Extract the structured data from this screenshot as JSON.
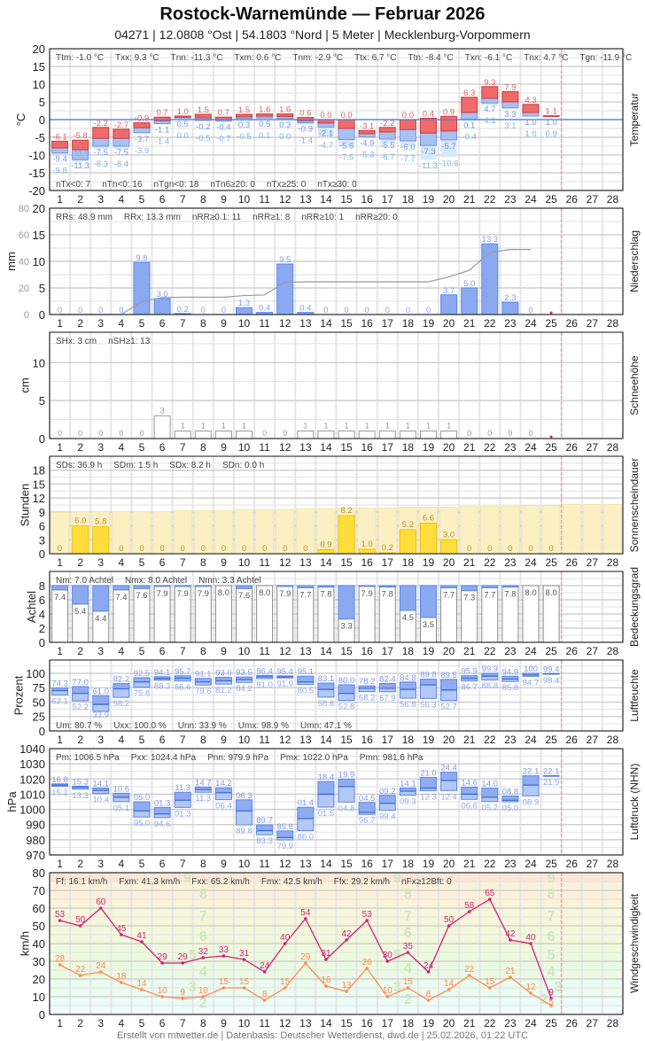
{
  "header": {
    "title": "Rostock-Warnemünde  —  Februar 2026",
    "subtitle": "04271  |  12.0808 °Ost  |  54.1803 °Nord  |  5 Meter  |  Mecklenburg-Vorpommern"
  },
  "footer": "Erstellt von mtwetter.de | Datenbasis: Deutscher Wetterdienst, dwd.de | 25.02.2026, 01:22 UTC",
  "days": [
    "1",
    "2",
    "3",
    "4",
    "5",
    "6",
    "7",
    "8",
    "9",
    "10",
    "11",
    "12",
    "13",
    "14",
    "15",
    "16",
    "17",
    "18",
    "19",
    "20",
    "21",
    "22",
    "23",
    "24",
    "25",
    "26",
    "27",
    "28"
  ],
  "today_marker_day": 25,
  "colors": {
    "tmax": "#f06a6a",
    "tmin": "#a9c0f2",
    "tground": "#d6e9f6",
    "precip": "#8aa9f0",
    "sun": "#ffdd3c",
    "sun_possible": "#fbf0c3",
    "cloud": "#8aa9f0",
    "gust": "#d0207a",
    "wind_mean": "#ff8a50",
    "today_line": "#f2a6a6"
  },
  "chart_data": [
    {
      "id": "temperature",
      "type": "bar",
      "panel_label": "Temperatur",
      "ylabel": "°C",
      "ylim": [
        -20,
        20
      ],
      "y_ticks": [
        20,
        15,
        10,
        5,
        0,
        -5,
        -10,
        -15,
        -20
      ],
      "stats_top": [
        "Ttm: -1.0 °C",
        "Txx: 9.3 °C",
        "Tnn: -11.3 °C",
        "Txm: 0.6 °C",
        "Tnm: -2.9 °C",
        "Ttx: 6.7 °C",
        "Ttn: -8.4 °C",
        "Txn: -6.1 °C",
        "Tnx: 4.7 °C",
        "Tgn: -11.9 °C"
      ],
      "stats_bottom": [
        "nTx<0: 7",
        "nTn<0: 16",
        "nTgn<0: 18",
        "nTn6≥20: 0",
        "nTx≥25: 0",
        "nTx≥30: 0"
      ],
      "tmax": [
        -6.1,
        -5.8,
        -2.2,
        -2.7,
        -0.9,
        0.7,
        1.0,
        1.5,
        0.7,
        1.5,
        1.6,
        1.6,
        0.6,
        0.0,
        0.0,
        -3.1,
        -2.2,
        0.0,
        0.4,
        0.9,
        6.3,
        9.3,
        7.9,
        4.3,
        1.1
      ],
      "tmean": [
        -8.0,
        -8.5,
        -5.3,
        -5.3,
        -2.3,
        -0.3,
        0.7,
        0.5,
        0.1,
        0.8,
        1.0,
        0.9,
        -0.3,
        -1.0,
        -2.5,
        -4.0,
        -3.5,
        -2.8,
        -3.8,
        -3.2,
        2.0,
        6.0,
        5.0,
        2.0,
        1.0
      ],
      "tmin": [
        -9.4,
        -11.3,
        -7.5,
        -7.5,
        -3.7,
        -1.1,
        0.5,
        -0.2,
        -0.4,
        0.3,
        0.5,
        0.3,
        -0.9,
        -2.1,
        -5.6,
        -4.9,
        -5.5,
        -6.0,
        -7.3,
        -5.7,
        0.1,
        4.7,
        3.3,
        1.0,
        1.0
      ],
      "tground_min": [
        -9.8,
        -11.9,
        -8.3,
        -8.4,
        -3.9,
        -1.4,
        0.0,
        -0.5,
        -0.7,
        -0.5,
        0.1,
        0.0,
        -1.4,
        -4.7,
        -7.5,
        -5.3,
        -6.7,
        -7.7,
        -11.3,
        -10.6,
        -0.4,
        4.1,
        3.1,
        1.0,
        0.9
      ]
    },
    {
      "id": "precipitation",
      "type": "bar",
      "panel_label": "Niederschlag",
      "ylabel": "mm",
      "ylim": [
        0,
        20
      ],
      "y_ticks": [
        0,
        5,
        10,
        15,
        20
      ],
      "y2lim": [
        0,
        80
      ],
      "y2_ticks": [
        0,
        20,
        40,
        60,
        80
      ],
      "stats_top": [
        "RRs: 48.9 mm",
        "RRx: 13.3 mm",
        "nRR≥0.1: 11",
        "nRR≥1: 8",
        "nRR≥10: 1",
        "nRR≥20: 0"
      ],
      "values": [
        0,
        0,
        0,
        0,
        9.8,
        3.0,
        0.2,
        0,
        0,
        1.3,
        0.4,
        9.5,
        0.4,
        0,
        0,
        0,
        0,
        0,
        0,
        3.7,
        5.0,
        13.3,
        2.3,
        0
      ],
      "cumulative_line": true
    },
    {
      "id": "snow",
      "type": "bar",
      "panel_label": "Schneehöhe",
      "ylabel": "cm",
      "ylim": [
        0,
        14
      ],
      "y_ticks": [
        0,
        5,
        10
      ],
      "stats_top": [
        "SHx: 3 cm",
        "nSH≥1: 13"
      ],
      "values": [
        0,
        0,
        0,
        0,
        0,
        3,
        1,
        1,
        1,
        1,
        0,
        0,
        1,
        1,
        1,
        1,
        1,
        1,
        1,
        1,
        0,
        0,
        0,
        0
      ]
    },
    {
      "id": "sunshine",
      "type": "bar",
      "panel_label": "Sonnenscheindauer",
      "ylabel": "Stunden",
      "ylim": [
        0,
        21
      ],
      "y_ticks": [
        0,
        3,
        6,
        9,
        12,
        15,
        18
      ],
      "stats_top": [
        "SDs: 36.9 h",
        "SDm: 1.5 h",
        "SDx: 8.2 h",
        "SDn: 0.0 h"
      ],
      "values": [
        0,
        6.0,
        5.8,
        0,
        0,
        0,
        0,
        0,
        0,
        0,
        0,
        0,
        0,
        0.9,
        8.2,
        1.0,
        0.2,
        5.2,
        6.6,
        3.0,
        0,
        0,
        0,
        0,
        0
      ],
      "possible": [
        8.9,
        9.0,
        9.0,
        9.1,
        9.1,
        9.1,
        9.3,
        9.3,
        9.3,
        9.5,
        9.5,
        9.5,
        9.7,
        9.7,
        9.8,
        9.8,
        9.8,
        10.0,
        10.0,
        10.0,
        10.2,
        10.2,
        10.2,
        10.4,
        10.4,
        10.6,
        10.6,
        10.6
      ]
    },
    {
      "id": "cloud",
      "type": "bar",
      "panel_label": "Bedeckungsgrad",
      "ylabel": "Achtel",
      "ylim": [
        0,
        10
      ],
      "y_ticks": [
        0,
        2,
        4,
        6,
        8
      ],
      "full": 8,
      "stats_top": [
        "Nm: 7.0 Achtel",
        "Nmx: 8.0 Achtel",
        "Nmn: 3.3 Achtel"
      ],
      "values": [
        7.4,
        5.4,
        4.4,
        7.4,
        7.6,
        7.9,
        7.9,
        7.9,
        8.0,
        7.6,
        8.0,
        7.9,
        7.7,
        7.8,
        3.3,
        7.9,
        7.8,
        4.5,
        3.5,
        7.7,
        7.3,
        7.7,
        7.8,
        8.0,
        8.0
      ]
    },
    {
      "id": "humidity",
      "type": "range-bar",
      "panel_label": "Luftfeuchte",
      "ylabel": "Prozent",
      "ylim": [
        0,
        123
      ],
      "y_ticks": [
        0,
        25,
        50,
        75,
        100
      ],
      "stats_top": [
        "Um: 80.7 %",
        "Uxx: 100.0 %",
        "Unn: 33.9 %",
        "Umx: 98.9 %",
        "Umn: 47.1 %"
      ],
      "max": [
        74.3,
        77.0,
        61.0,
        82.2,
        92.5,
        94.1,
        95.7,
        91.1,
        93.0,
        93.5,
        96.4,
        95.4,
        95.1,
        83.1,
        80.0,
        78.2,
        82.4,
        84.8,
        89.8,
        89.5,
        95.9,
        99.9,
        94.9,
        100,
        99.4
      ],
      "mean": [
        70,
        65,
        46,
        73,
        85,
        91,
        91,
        85,
        87,
        89,
        94,
        94,
        85,
        72,
        65,
        74,
        74,
        72,
        80,
        71,
        91,
        95,
        90,
        97,
        99
      ],
      "min": [
        62.1,
        52.2,
        33.9,
        58.2,
        75.8,
        88.3,
        86.6,
        79.6,
        81.2,
        84.2,
        91.0,
        91.9,
        80.5,
        58.6,
        52.8,
        68.2,
        67.9,
        56.8,
        56.3,
        52.7,
        86.7,
        88.8,
        85.8,
        94.7,
        98.4
      ]
    },
    {
      "id": "pressure",
      "type": "range-bar",
      "panel_label": "Luftdruck (NHN)",
      "ylabel": "hPa",
      "ylim": [
        970,
        1040
      ],
      "y_ticks": [
        970,
        980,
        990,
        1000,
        1010,
        1020,
        1030,
        1040
      ],
      "stats_top": [
        "Pm: 1006.5 hPa",
        "Pxx: 1024.4 hPa",
        "Pnn: 979.9 hPa",
        "Pmx: 1022.0 hPa",
        "Pmn: 981.6 hPa"
      ],
      "max": [
        1016.8,
        1015.3,
        1014.1,
        1010.6,
        1005.0,
        1001.3,
        1011.3,
        1014.7,
        1014.2,
        1006.3,
        989.7,
        985.8,
        1001.4,
        1018.4,
        1019.9,
        1004.5,
        1009.2,
        1014.1,
        1021.0,
        1024.4,
        1014.6,
        1014.0,
        1008.8,
        1022.1,
        1022.1
      ],
      "mean": [
        1016,
        1014.5,
        1012.5,
        1008,
        999,
        997,
        1006,
        1013,
        1011,
        999,
        986,
        981.5,
        994,
        1010,
        1015,
        998,
        1004,
        1012,
        1014,
        1019,
        1010,
        1008,
        1006,
        1016,
        1022
      ],
      "min": [
        1015.2,
        1013.3,
        1010.4,
        1005.1,
        995.0,
        994.6,
        1001.3,
        1011.3,
        1006.4,
        989.8,
        983.3,
        979.9,
        986.0,
        1001.5,
        1004.8,
        996.7,
        999.4,
        1009.3,
        1012.3,
        1012.4,
        1006.6,
        1005.2,
        1005.0,
        1008.9,
        1021.9
      ]
    },
    {
      "id": "wind",
      "type": "line",
      "panel_label": "Windgeschwindigkeit",
      "ylabel": "km/h",
      "ylim": [
        0,
        80
      ],
      "y_ticks": [
        0,
        10,
        20,
        30,
        40,
        50,
        60,
        70,
        80
      ],
      "stats_top": [
        "Ff: 16.1 km/h",
        "Fxm: 41.3 km/h",
        "Fxx: 65.2 km/h",
        "Fmx: 42.5 km/h",
        "Ffx: 29.2 km/h",
        "nFx≥12Bft: 0"
      ],
      "series": [
        {
          "id": "gust",
          "values": [
            53,
            50,
            60,
            45,
            41,
            29,
            29,
            32,
            33,
            31,
            24,
            40,
            54,
            31,
            42,
            53,
            30,
            35,
            24,
            50,
            58,
            65,
            42,
            40,
            9
          ]
        },
        {
          "id": "mean",
          "values": [
            28,
            22,
            24,
            18,
            14,
            10,
            9,
            10,
            15,
            15,
            8,
            15,
            29,
            16,
            13,
            26,
            10,
            15,
            8,
            14,
            22,
            15,
            21,
            12,
            5
          ]
        }
      ],
      "beaufort_bands": [
        {
          "bft": "0",
          "from": 0,
          "to": 1,
          "color": "#f3fcff"
        },
        {
          "bft": "1",
          "from": 1,
          "to": 6,
          "color": "#eefcfd"
        },
        {
          "bft": "2",
          "from": 6,
          "to": 12,
          "color": "#ebfcf6"
        },
        {
          "bft": "3",
          "from": 12,
          "to": 20,
          "color": "#eafbef"
        },
        {
          "bft": "4",
          "from": 20,
          "to": 29,
          "color": "#e9fae2"
        },
        {
          "bft": "5",
          "from": 29,
          "to": 39,
          "color": "#edf9dc"
        },
        {
          "bft": "6",
          "from": 39,
          "to": 50,
          "color": "#f2f8da"
        },
        {
          "bft": "7",
          "from": 50,
          "to": 62,
          "color": "#f7f6d8"
        },
        {
          "bft": "8",
          "from": 62,
          "to": 75,
          "color": "#fbf1d8"
        },
        {
          "bft": "9",
          "from": 75,
          "to": 80,
          "color": "#fde6d6"
        }
      ],
      "beaufort_label_days": [
        8,
        18,
        25
      ]
    }
  ]
}
